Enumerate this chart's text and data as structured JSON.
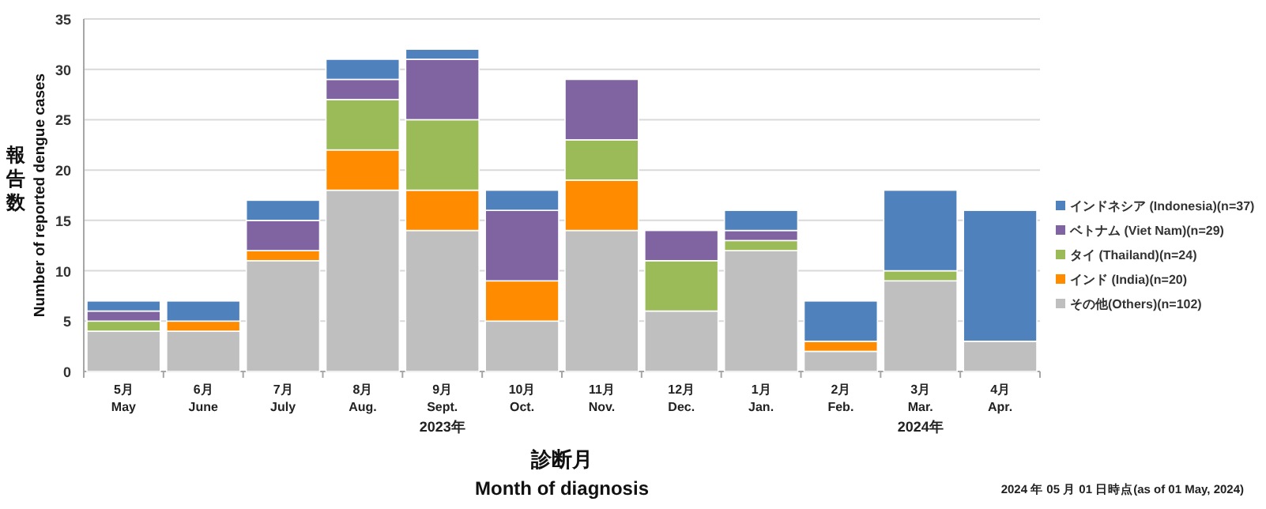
{
  "chart_data": {
    "type": "bar",
    "stacked": true,
    "xlabel": "診断月\nMonth of diagnosis",
    "ylabel": "報告数\nNumber of reported dengue cases",
    "categories": [
      "5月\nMay",
      "6月\nJune",
      "7月\nJuly",
      "8月\nAug.",
      "9月\nSept.",
      "10月\nOct.",
      "11月\nNov.",
      "12月\nDec.",
      "1月\nJan.",
      "2月\nFeb.",
      "3月\nMar.",
      "4月\nApr."
    ],
    "series": [
      {
        "name": "その他(Others)(n=102)",
        "color": "#bfbfbf",
        "values": [
          4,
          4,
          11,
          18,
          14,
          5,
          14,
          6,
          12,
          2,
          9,
          3
        ]
      },
      {
        "name": "インド (India)(n=20)",
        "color": "#ff8c00",
        "values": [
          0,
          1,
          1,
          4,
          4,
          4,
          5,
          0,
          0,
          1,
          0,
          0
        ]
      },
      {
        "name": "タイ (Thailand)(n=24)",
        "color": "#9bbb59",
        "values": [
          1,
          0,
          0,
          5,
          7,
          0,
          4,
          5,
          1,
          0,
          1,
          0
        ]
      },
      {
        "name": "ベトナム (Viet Nam)(n=29)",
        "color": "#8064a2",
        "values": [
          1,
          0,
          3,
          2,
          6,
          7,
          6,
          3,
          1,
          0,
          0,
          0
        ]
      },
      {
        "name": "インドネシア (Indonesia)(n=37)",
        "color": "#4f81bd",
        "values": [
          1,
          2,
          2,
          2,
          1,
          2,
          0,
          0,
          2,
          4,
          8,
          13
        ]
      }
    ],
    "ylim": [
      0,
      35
    ],
    "yticks": [
      0,
      5,
      10,
      15,
      20,
      25,
      30,
      35
    ],
    "grid": "y",
    "legend": "right",
    "annotations": [
      "2023年",
      "2024年",
      "2024 年 05 月 01 日時点(as of 01 May, 2024)"
    ]
  }
}
